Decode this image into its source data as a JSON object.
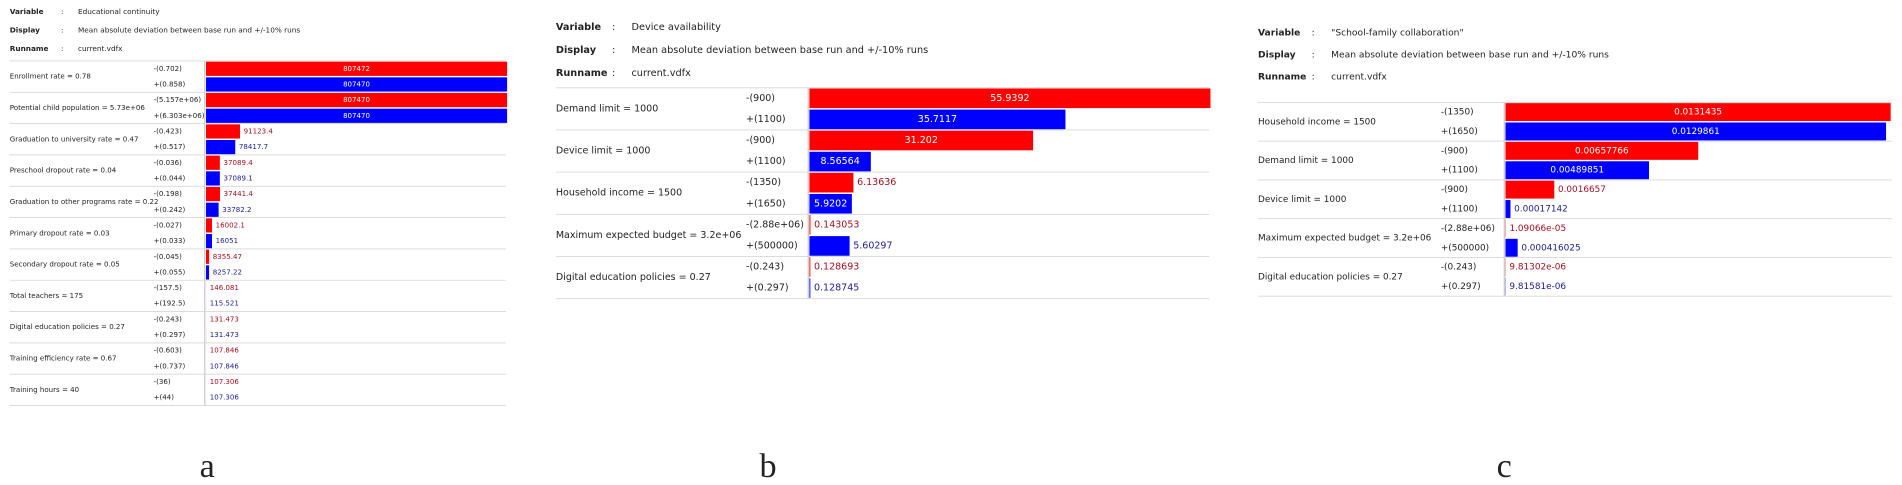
{
  "chart_data": [
    {
      "type": "bar",
      "caption": "a",
      "meta": [
        {
          "label": "Variable",
          "value": "Educational continuity"
        },
        {
          "label": "Display",
          "value": "Mean absolute deviation between base run and +/-10% runs"
        },
        {
          "label": "Runname",
          "value": "current.vdfx"
        }
      ],
      "categories": [
        "Enrollment rate = 0.78",
        "Potential child population = 5.73e+06",
        "Graduation to university rate = 0.47",
        "Preschool dropout rate = 0.04",
        "Graduation to other programs rate = 0.22",
        "Primary dropout rate = 0.03",
        "Secondary dropout rate = 0.05",
        "Total teachers = 175",
        "Digital education policies = 0.27",
        "Training efficiency rate = 0.67",
        "Training hours = 40"
      ],
      "series": [
        {
          "color": "#ff0000",
          "bounds": [
            "-(0.702)",
            "-(5.157e+06)",
            "-(0.423)",
            "-(0.036)",
            "-(0.198)",
            "-(0.027)",
            "-(0.045)",
            "-(157.5)",
            "-(0.243)",
            "-(0.603)",
            "-(36)"
          ],
          "values": [
            807472,
            807470,
            91123.4,
            37089.4,
            37441.4,
            16002.1,
            8355.47,
            146.081,
            131.473,
            107.846,
            107.306
          ]
        },
        {
          "color": "#0000ff",
          "bounds": [
            "+(0.858)",
            "+(6.303e+06)",
            "+(0.517)",
            "+(0.044)",
            "+(0.242)",
            "+(0.033)",
            "+(0.055)",
            "+(192.5)",
            "+(0.297)",
            "+(0.737)",
            "+(44)"
          ],
          "values": [
            807470,
            807470,
            78417.7,
            37089.1,
            33782.2,
            16051,
            8257.22,
            115.521,
            131.473,
            107.846,
            107.306
          ]
        }
      ]
    },
    {
      "type": "bar",
      "caption": "b",
      "meta": [
        {
          "label": "Variable",
          "value": "Device availability"
        },
        {
          "label": "Display",
          "value": "Mean absolute deviation between base run and +/-10% runs"
        },
        {
          "label": "Runname",
          "value": "current.vdfx"
        }
      ],
      "categories": [
        "Demand limit = 1000",
        "Device limit = 1000",
        "Household income = 1500",
        "Maximum expected budget = 3.2e+06",
        "Digital education policies = 0.27"
      ],
      "series": [
        {
          "color": "#ff0000",
          "bounds": [
            "-(900)",
            "-(900)",
            "-(1350)",
            "-(2.88e+06)",
            "-(0.243)"
          ],
          "values": [
            55.9392,
            31.202,
            6.13636,
            0.143053,
            0.128693
          ]
        },
        {
          "color": "#0000ff",
          "bounds": [
            "+(1100)",
            "+(1100)",
            "+(1650)",
            "+(500000)",
            "+(0.297)"
          ],
          "values": [
            35.7117,
            8.56564,
            5.9202,
            5.60297,
            0.128745
          ]
        }
      ]
    },
    {
      "type": "bar",
      "caption": "c",
      "meta": [
        {
          "label": "Variable",
          "value": "\"School-family collaboration\""
        },
        {
          "label": "Display",
          "value": "Mean absolute deviation between base run and +/-10% runs"
        },
        {
          "label": "Runname",
          "value": "current.vdfx"
        }
      ],
      "categories": [
        "Household income = 1500",
        "Demand limit = 1000",
        "Device limit = 1000",
        "Maximum expected budget = 3.2e+06",
        "Digital education policies = 0.27"
      ],
      "series": [
        {
          "color": "#ff0000",
          "bounds": [
            "-(1350)",
            "-(900)",
            "-(900)",
            "-(2.88e+06)",
            "-(0.243)"
          ],
          "values": [
            0.0131435,
            0.00657766,
            0.0016657,
            1.09066e-05,
            9.81302e-06
          ],
          "value_labels": [
            "0.0131435",
            "0.00657766",
            "0.0016657",
            "1.09066e-05",
            "9.81302e-06"
          ]
        },
        {
          "color": "#0000ff",
          "bounds": [
            "+(1650)",
            "+(1100)",
            "+(1100)",
            "+(500000)",
            "+(0.297)"
          ],
          "values": [
            0.0129861,
            0.00489851,
            0.00017142,
            0.000416025,
            9.81581e-06
          ],
          "value_labels": [
            "0.0129861",
            "0.00489851",
            "0.00017142",
            "0.000416025",
            "9.81581e-06"
          ]
        }
      ]
    }
  ]
}
